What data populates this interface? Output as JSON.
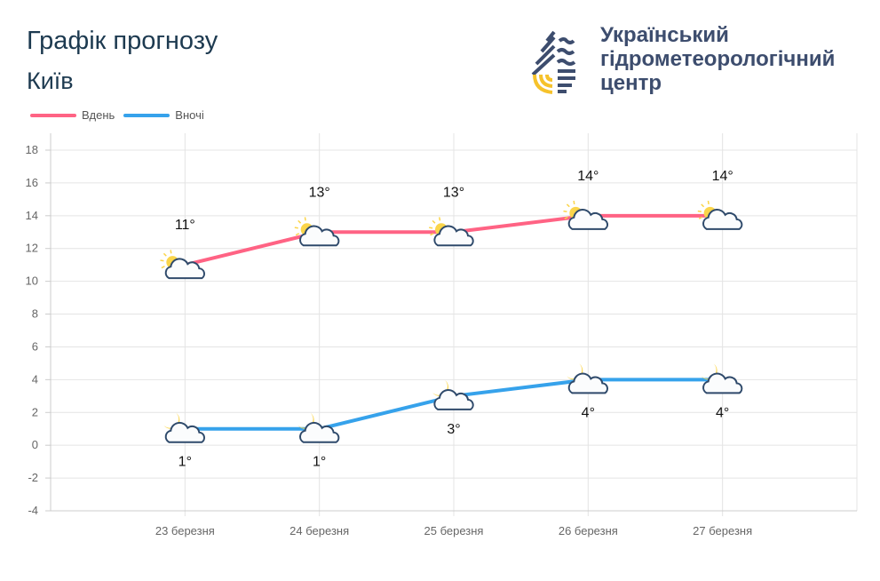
{
  "header": {
    "title": "Графік прогнозу",
    "city": "Київ"
  },
  "organization": {
    "line1": "Український",
    "line2": "гідрометеорологічний",
    "line3": "центр"
  },
  "chart_data": {
    "type": "line",
    "categories": [
      "23 березня",
      "24 березня",
      "25 березня",
      "26 березня",
      "27 березня"
    ],
    "series": [
      {
        "name": "Вдень",
        "color": "#ff6384",
        "values": [
          11,
          13,
          13,
          14,
          14
        ],
        "labels": [
          "11°",
          "13°",
          "13°",
          "14°",
          "14°"
        ],
        "icon": "sun-cloud-icon"
      },
      {
        "name": "Вночі",
        "color": "#36a2eb",
        "values": [
          1,
          1,
          3,
          4,
          4
        ],
        "labels": [
          "1°",
          "1°",
          "3°",
          "4°",
          "4°"
        ],
        "icon": "moon-cloud-icon"
      }
    ],
    "ylim": [
      -4,
      18
    ],
    "yticks": [
      "18",
      "16",
      "14",
      "12",
      "10",
      "8",
      "6",
      "4",
      "2",
      "0",
      "-2",
      "-4"
    ],
    "grid": true,
    "legend": "top-left"
  }
}
